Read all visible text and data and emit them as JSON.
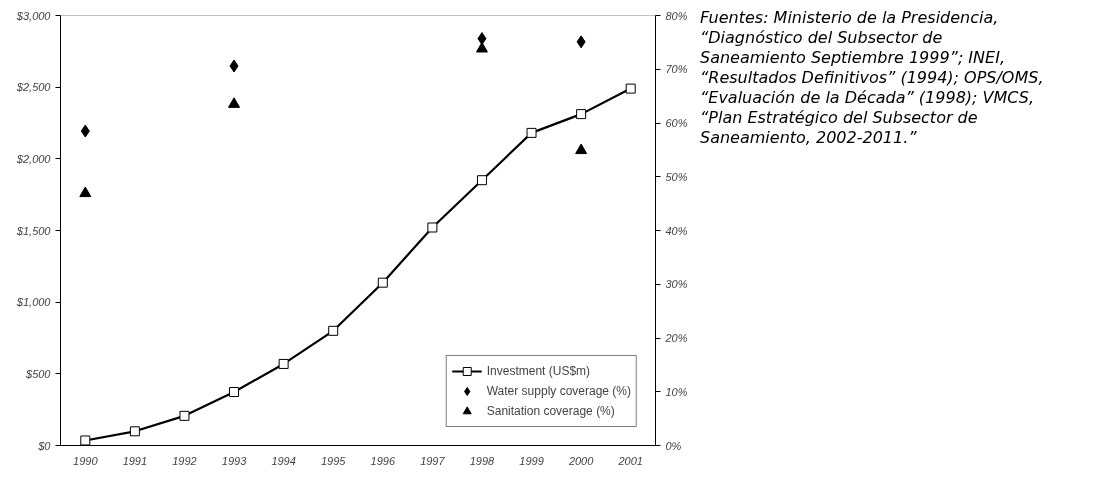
{
  "chart_data": {
    "type": "line",
    "categories": [
      "1990",
      "1991",
      "1992",
      "1993",
      "1994",
      "1995",
      "1996",
      "1997",
      "1998",
      "1999",
      "2000",
      "2001"
    ],
    "series": [
      {
        "name": "Investment (US$m)",
        "color": "#000000",
        "marker": "square",
        "values": [
          35,
          99,
          207,
          373,
          569,
          800,
          1136,
          1521,
          1851,
          2181,
          2312,
          2490
        ]
      },
      {
        "name": "Water supply coverage (%)",
        "type": "scatter",
        "axis": "y2",
        "color": "#000000",
        "marker": "diamond",
        "values": [
          58.5,
          null,
          null,
          70.6,
          null,
          null,
          null,
          null,
          75.7,
          null,
          75.1,
          null
        ]
      },
      {
        "name": "Sanitation coverage (%)",
        "type": "scatter",
        "axis": "y2",
        "color": "#000000",
        "marker": "triangle",
        "values": [
          46.9,
          null,
          null,
          63.5,
          null,
          null,
          null,
          null,
          73.8,
          null,
          54.9,
          null
        ]
      }
    ],
    "ylim": [
      0,
      3000
    ],
    "yticks": [
      {
        "value": 0,
        "label": "$0"
      },
      {
        "value": 500,
        "label": "$500"
      },
      {
        "value": 1000,
        "label": "$1,000"
      },
      {
        "value": 1500,
        "label": "$1,500"
      },
      {
        "value": 2000,
        "label": "$2,000"
      },
      {
        "value": 2500,
        "label": "$2,500"
      },
      {
        "value": 3000,
        "label": "$3,000"
      }
    ],
    "y2lim": [
      0,
      80
    ],
    "y2ticks": [
      {
        "value": 0,
        "label": "0%"
      },
      {
        "value": 10,
        "label": "10%"
      },
      {
        "value": 20,
        "label": "20%"
      },
      {
        "value": 30,
        "label": "30%"
      },
      {
        "value": 40,
        "label": "40%"
      },
      {
        "value": 50,
        "label": "50%"
      },
      {
        "value": 60,
        "label": "60%"
      },
      {
        "value": 70,
        "label": "70%"
      },
      {
        "value": 80,
        "label": "80%"
      }
    ],
    "legend": "bottom right",
    "grid": false,
    "annotations": [
      "Fuentes: Ministerio de la Presidencia, “Diagnóstico del Subsector de Saneamiento Septiembre 1999”; INEI, “Resultados Definitivos” (1994); OPS/OMS, “Evaluación de la Década” (1998); VMCS, “Plan Estratégico del Subsector de Saneamiento, 2002-2011.”"
    ]
  }
}
